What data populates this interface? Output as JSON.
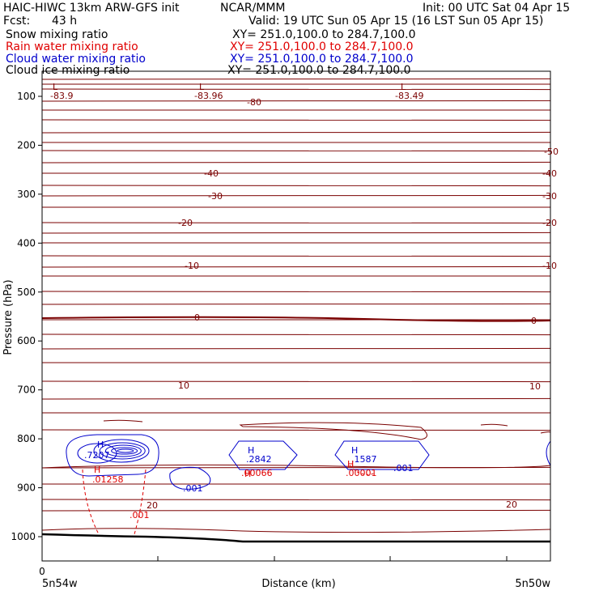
{
  "header": {
    "model_title": "HAIC-HIWC 13km ARW-GFS init",
    "org": "NCAR/MMM",
    "init": "Init: 00 UTC Sat 04 Apr 15",
    "fcst_label": "Fcst:",
    "fcst_value": "43 h",
    "valid": "Valid: 19 UTC Sun 05 Apr 15 (16 LST Sun 05 Apr 15)",
    "fields": [
      {
        "name": "Snow mixing ratio",
        "xy": "XY=  251.0,100.0 to 284.7,100.0",
        "color": "#000000"
      },
      {
        "name": "Rain water mixing ratio",
        "xy": "XY=  251.0,100.0 to 284.7,100.0",
        "color": "#e00000"
      },
      {
        "name": "Cloud water mixing ratio",
        "xy": "XY=  251.0,100.0 to 284.7,100.0",
        "color": "#0000cc"
      },
      {
        "name": "Cloud ice mixing ratio",
        "xy": "XY=  251.0,100.0 to 284.7,100.0",
        "color": "#000000"
      }
    ]
  },
  "chart_data": {
    "type": "line",
    "xlabel": "Distance (km)",
    "ylabel": "Pressure (hPa)",
    "x_ticks": [
      "0"
    ],
    "x_end_labels": [
      "5n54w",
      "5n50w"
    ],
    "y_ticks": [
      100,
      200,
      300,
      400,
      500,
      600,
      700,
      800,
      900,
      1000
    ],
    "ylim": [
      50,
      1050
    ],
    "temperature_contour_labels": [
      "-83.9",
      "-83.96",
      "-80",
      "-83.49",
      "-50",
      "-40",
      "-40",
      "-30",
      "-30",
      "-20",
      "-20",
      "-10",
      "-10",
      "0",
      "0",
      "10",
      "10",
      "20",
      "20"
    ],
    "extrema": [
      {
        "letter": "L",
        "value": "-83.9",
        "color": "#800000"
      },
      {
        "letter": "L",
        "value": "-83.96",
        "color": "#800000"
      },
      {
        "letter": "L",
        "value": "-83.49",
        "color": "#800000"
      },
      {
        "letter": "H",
        "value": ".7207",
        "color": "#0000cc"
      },
      {
        "letter": "H",
        "value": ".01258",
        "color": "#e00000"
      },
      {
        "letter": "H",
        "value": ".2842",
        "color": "#0000cc"
      },
      {
        "letter": "H",
        "value": ".00066",
        "color": "#e00000"
      },
      {
        "letter": "H",
        "value": ".1587",
        "color": "#0000cc"
      },
      {
        "letter": "H",
        "value": ".00001",
        "color": "#e00000"
      }
    ],
    "cloud_water_labels": [
      ".001",
      ".001"
    ],
    "rain_water_labels": [
      ".001"
    ],
    "colors": {
      "temperature": "#7a0000",
      "cloud_water": "#0000cc",
      "rain_water": "#e00000",
      "ground": "#000000"
    }
  }
}
